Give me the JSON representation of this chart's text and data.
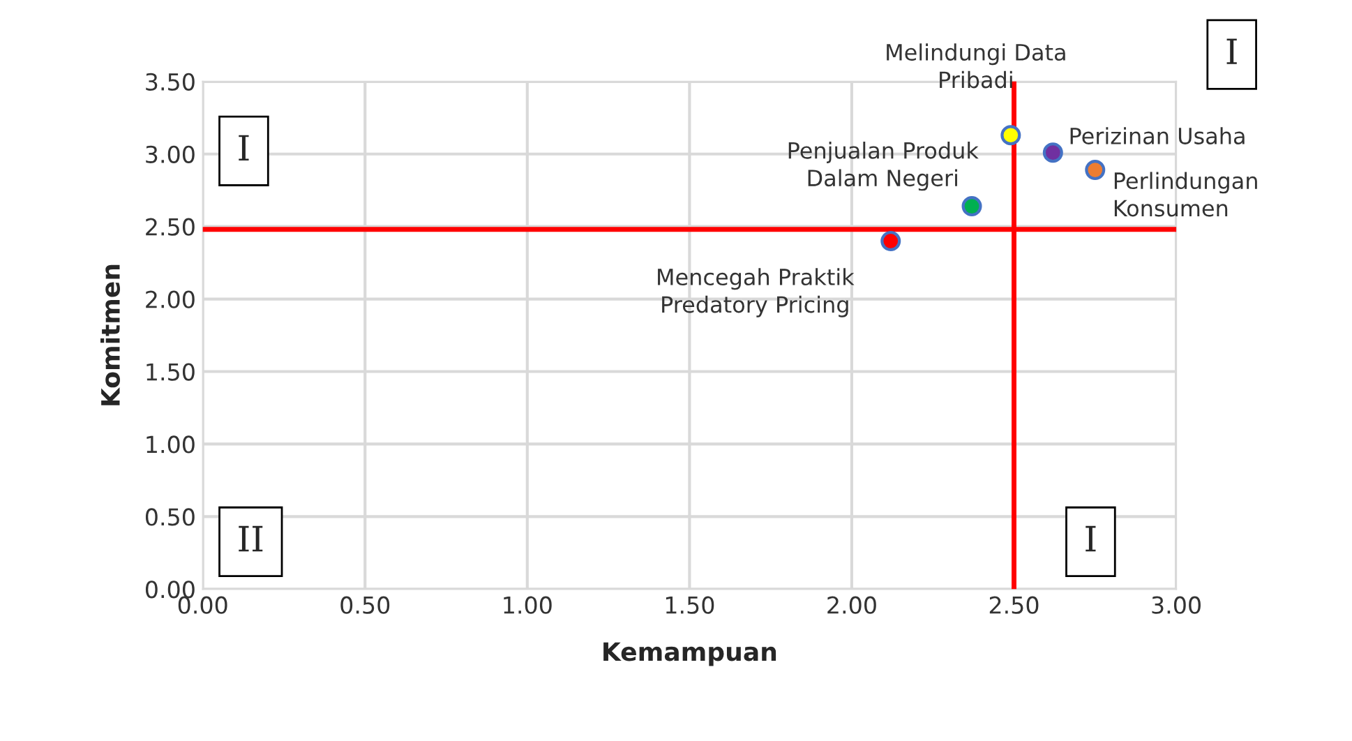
{
  "chart_data": {
    "type": "scatter",
    "xlabel": "Kemampuan",
    "ylabel": "Komitmen",
    "x": [
      2.49,
      2.62,
      2.75,
      2.37,
      2.12
    ],
    "values": [
      3.13,
      3.01,
      2.89,
      2.64,
      2.4
    ],
    "colors": [
      "#ffff00",
      "#7030a0",
      "#ed7d31",
      "#00b050",
      "#ff0000"
    ],
    "marker": "circle",
    "xlim": [
      0,
      3
    ],
    "xticks": [
      {
        "value": 0,
        "label": "0.00"
      },
      {
        "value": 0.5,
        "label": "0.50"
      },
      {
        "value": 1,
        "label": "1.00"
      },
      {
        "value": 1.5,
        "label": "1.50"
      },
      {
        "value": 2,
        "label": "2.00"
      },
      {
        "value": 2.5,
        "label": "2.50"
      },
      {
        "value": 3,
        "label": "3.00"
      }
    ],
    "ylim": [
      0,
      3.5
    ],
    "yticks": [
      {
        "value": 0,
        "label": "0.00"
      },
      {
        "value": 0.5,
        "label": "0.50"
      },
      {
        "value": 1,
        "label": "1.00"
      },
      {
        "value": 1.5,
        "label": "1.50"
      },
      {
        "value": 2,
        "label": "2.00"
      },
      {
        "value": 2.5,
        "label": "2.50"
      },
      {
        "value": 3,
        "label": "3.00"
      },
      {
        "value": 3.5,
        "label": "3.50"
      }
    ],
    "grid": true,
    "ref_lines": [
      {
        "axis": "y",
        "value": 2.48,
        "color": "#ff0000"
      },
      {
        "axis": "x",
        "value": 2.5,
        "color": "#ff0000"
      }
    ],
    "annotations": [
      {
        "text": "Melindungi Data\nPribadi",
        "x": 2.49,
        "y": 3.13
      },
      {
        "text": "Perizinan Usaha",
        "x": 2.62,
        "y": 3.01
      },
      {
        "text": "Perlindungan\nKonsumen",
        "x": 2.75,
        "y": 2.89
      },
      {
        "text": "Penjualan Produk\nDalam Negeri",
        "x": 2.37,
        "y": 2.64
      },
      {
        "text": "Mencegah Praktik\nPredatory Pricing",
        "x": 2.12,
        "y": 2.4
      },
      "I",
      "I",
      "II",
      "I"
    ]
  }
}
